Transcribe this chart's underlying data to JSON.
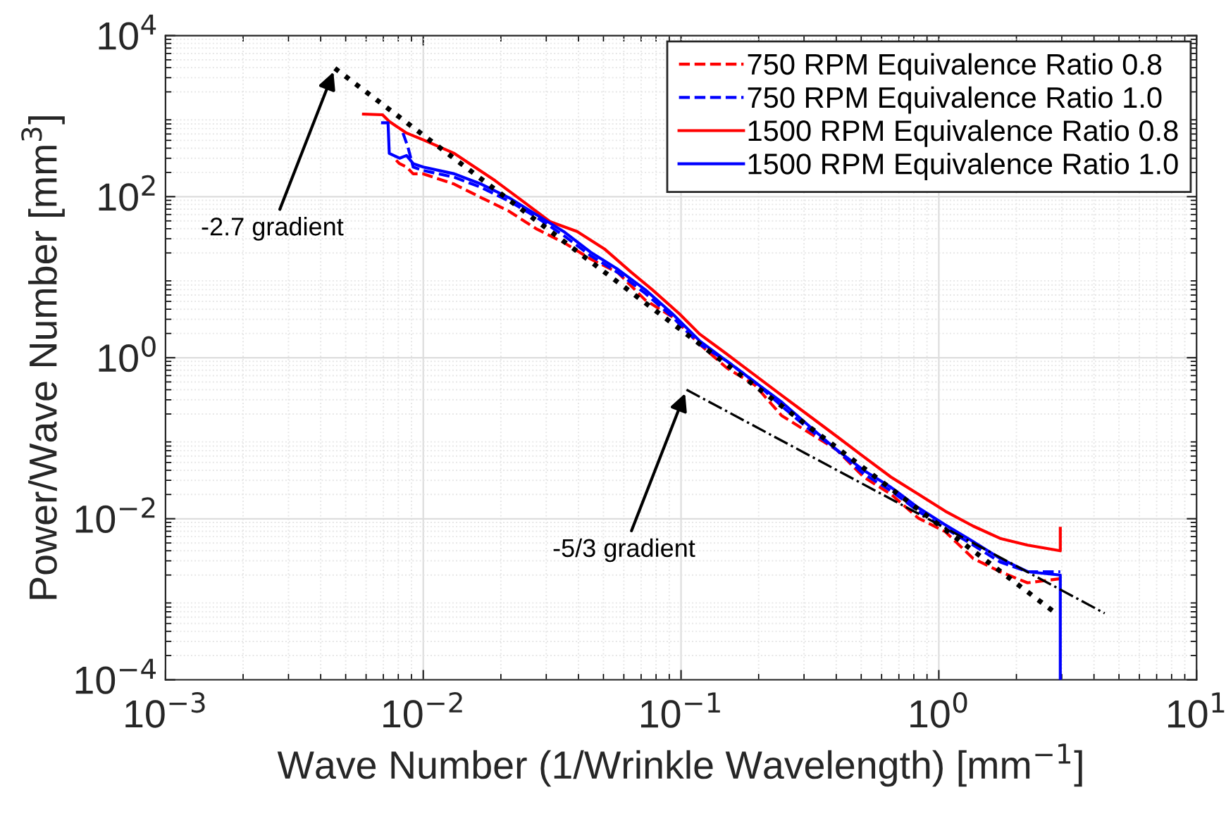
{
  "chart_data": {
    "type": "line",
    "xlabel": "Wave Number (1/Wrinkle Wavelength) [mm$^{−1}$]",
    "ylabel": "Power/Wave Number [mm$^{3}$]",
    "log": "xy",
    "grid": true,
    "legend": "top right",
    "xlim": [
      0.001,
      10
    ],
    "ylim": [
      0.0001,
      10000
    ],
    "xticks": [
      {
        "value": 0.001,
        "label": "10$^{−3}$"
      },
      {
        "value": 0.01,
        "label": "10$^{−2}$"
      },
      {
        "value": 0.1,
        "label": "10$^{−1}$"
      },
      {
        "value": 1,
        "label": "10$^{0}$"
      },
      {
        "value": 10,
        "label": "10$^{1}$"
      }
    ],
    "yticks": [
      {
        "value": 0.0001,
        "label": "10$^{−4}$"
      },
      {
        "value": 0.01,
        "label": "10$^{−2}$"
      },
      {
        "value": 1,
        "label": "10$^{0}$"
      },
      {
        "value": 100,
        "label": "10$^{2}$"
      },
      {
        "value": 10000,
        "label": "10$^{4}$"
      }
    ],
    "annotations": [
      {
        "text": "-2.7 gradient",
        "x": 0.00454,
        "y": 3926
      },
      {
        "text": "-5/3 gradient",
        "x": 0.105,
        "y": 0.4
      }
    ],
    "series": [
      {
        "name": "750 RPM Equivalence Ratio 0.8",
        "color": "#ff0000",
        "line_style": "dashed",
        "x": [
          0.00785,
          0.00809,
          0.00861,
          0.00914,
          0.01,
          0.0132,
          0.0168,
          0.0215,
          0.0274,
          0.035,
          0.0446,
          0.0569,
          0.0726,
          0.0927,
          0.118,
          0.151,
          0.193,
          0.246,
          0.314,
          0.401,
          0.511,
          0.652,
          0.832,
          1.06,
          1.36,
          1.73,
          2.21,
          2.96
        ],
        "values": [
          283,
          257,
          233,
          192,
          192,
          143,
          97,
          66,
          40,
          27,
          16.8,
          11.4,
          5.2,
          3.2,
          1.47,
          0.74,
          0.46,
          0.19,
          0.117,
          0.072,
          0.033,
          0.0202,
          0.0102,
          0.0069,
          0.0032,
          0.0022,
          0.0016,
          0.0018
        ]
      },
      {
        "name": "750 RPM Equivalence Ratio 1.0",
        "color": "#0000ff",
        "line_style": "dashed",
        "x": [
          0.00834,
          0.00871,
          0.00914,
          0.01,
          0.0132,
          0.0168,
          0.0215,
          0.0274,
          0.035,
          0.0446,
          0.0569,
          0.0726,
          0.0927,
          0.118,
          0.151,
          0.193,
          0.246,
          0.314,
          0.401,
          0.511,
          0.652,
          0.832,
          1.06,
          1.36,
          1.73,
          2.21,
          2.96
        ],
        "values": [
          617,
          418,
          233,
          211,
          174,
          130,
          88,
          56,
          33,
          18.5,
          11.4,
          6.3,
          3.2,
          1.47,
          0.9,
          0.5,
          0.25,
          0.129,
          0.072,
          0.036,
          0.0223,
          0.0124,
          0.0076,
          0.0047,
          0.0029,
          0.0022,
          0.0022
        ]
      },
      {
        "name": "1500 RPM Equivalence Ratio 0.8",
        "color": "#ff0000",
        "line_style": "solid",
        "x": [
          0.00586,
          0.00695,
          0.00738,
          0.00861,
          0.01,
          0.0132,
          0.019,
          0.0243,
          0.031,
          0.0395,
          0.0504,
          0.0643,
          0.0773,
          0.0986,
          0.118,
          0.151,
          0.193,
          0.246,
          0.314,
          0.401,
          0.511,
          0.652,
          0.832,
          1.06,
          1.36,
          1.73,
          2.21,
          2.96,
          2.96
        ],
        "values": [
          1060,
          1040,
          859,
          617,
          507,
          344,
          158,
          88,
          49,
          37,
          22.5,
          11.4,
          7.0,
          3.5,
          1.97,
          1.1,
          0.61,
          0.34,
          0.19,
          0.106,
          0.059,
          0.033,
          0.0202,
          0.0124,
          0.0081,
          0.0057,
          0.0047,
          0.004,
          0.0076
        ]
      },
      {
        "name": "1500 RPM Equivalence Ratio 1.0",
        "color": "#0000ff",
        "line_style": "solid",
        "x": [
          0.00695,
          0.0073,
          0.00738,
          0.00809,
          0.00861,
          0.00914,
          0.01,
          0.0132,
          0.0168,
          0.0215,
          0.0274,
          0.035,
          0.0446,
          0.0569,
          0.0726,
          0.0927,
          0.118,
          0.151,
          0.193,
          0.246,
          0.314,
          0.401,
          0.511,
          0.652,
          0.832,
          1.06,
          1.36,
          1.73,
          2.21,
          2.96,
          2.96
        ],
        "values": [
          826,
          826,
          344,
          300,
          324,
          257,
          233,
          192,
          143,
          97,
          60,
          37,
          20.4,
          12.5,
          7.0,
          3.5,
          1.62,
          0.9,
          0.5,
          0.28,
          0.142,
          0.072,
          0.04,
          0.0246,
          0.0137,
          0.0084,
          0.0052,
          0.0032,
          0.0022,
          0.002,
          0.0001
        ]
      },
      {
        "color": "#000000",
        "line_style": "dotted",
        "x": [
          0.00454,
          2.9
        ],
        "values": [
          3926,
          0.00064
        ]
      },
      {
        "color": "#000000",
        "line_style": "dashdot",
        "x": [
          0.105,
          4.4
        ],
        "values": [
          0.4,
          0.00067
        ]
      }
    ]
  }
}
